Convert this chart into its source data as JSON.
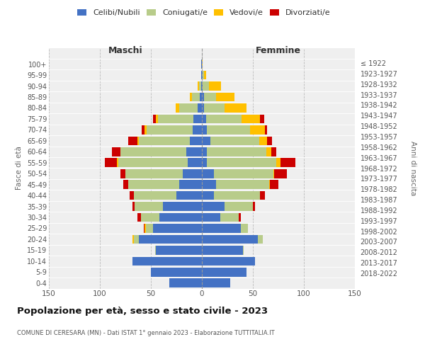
{
  "age_groups": [
    "0-4",
    "5-9",
    "10-14",
    "15-19",
    "20-24",
    "25-29",
    "30-34",
    "35-39",
    "40-44",
    "45-49",
    "50-54",
    "55-59",
    "60-64",
    "65-69",
    "70-74",
    "75-79",
    "80-84",
    "85-89",
    "90-94",
    "95-99",
    "100+"
  ],
  "birth_years": [
    "2018-2022",
    "2013-2017",
    "2008-2012",
    "2003-2007",
    "1998-2002",
    "1993-1997",
    "1988-1992",
    "1983-1987",
    "1978-1982",
    "1973-1977",
    "1968-1972",
    "1963-1967",
    "1958-1962",
    "1953-1957",
    "1948-1952",
    "1943-1947",
    "1938-1942",
    "1933-1937",
    "1928-1932",
    "1923-1927",
    "≤ 1922"
  ],
  "maschi": {
    "celibi": [
      32,
      50,
      68,
      45,
      62,
      48,
      42,
      38,
      25,
      22,
      19,
      14,
      15,
      12,
      9,
      8,
      4,
      2,
      1,
      1,
      1
    ],
    "coniugati": [
      0,
      0,
      0,
      1,
      5,
      7,
      18,
      28,
      42,
      50,
      56,
      68,
      65,
      50,
      45,
      35,
      18,
      8,
      2,
      0,
      0
    ],
    "vedovi": [
      0,
      0,
      0,
      0,
      1,
      1,
      0,
      0,
      0,
      0,
      0,
      1,
      0,
      1,
      2,
      2,
      4,
      2,
      1,
      0,
      0
    ],
    "divorziati": [
      0,
      0,
      0,
      0,
      0,
      1,
      3,
      2,
      4,
      5,
      5,
      12,
      8,
      9,
      3,
      3,
      0,
      0,
      0,
      0,
      0
    ]
  },
  "femmine": {
    "nubili": [
      28,
      44,
      52,
      40,
      55,
      38,
      18,
      22,
      12,
      14,
      12,
      5,
      5,
      8,
      5,
      4,
      2,
      2,
      1,
      1,
      0
    ],
    "coniugate": [
      0,
      0,
      0,
      1,
      5,
      7,
      18,
      28,
      45,
      52,
      58,
      68,
      58,
      48,
      42,
      35,
      20,
      12,
      6,
      1,
      0
    ],
    "vedove": [
      0,
      0,
      0,
      0,
      0,
      0,
      0,
      0,
      0,
      1,
      1,
      4,
      5,
      8,
      15,
      18,
      22,
      18,
      12,
      2,
      1
    ],
    "divorziate": [
      0,
      0,
      0,
      0,
      0,
      0,
      2,
      2,
      5,
      8,
      12,
      15,
      5,
      5,
      2,
      4,
      0,
      0,
      0,
      0,
      0
    ]
  },
  "colors": {
    "celibi_nubili": "#4472c4",
    "coniugati": "#b8cc8a",
    "vedovi": "#ffc000",
    "divorziati": "#cc0000"
  },
  "xlim": 150,
  "title": "Popolazione per età, sesso e stato civile - 2023",
  "subtitle": "COMUNE DI CERESARA (MN) - Dati ISTAT 1° gennaio 2023 - Elaborazione TUTTITALIA.IT",
  "ylabel_left": "Fasce di età",
  "ylabel_right": "Anni di nascita",
  "xlabel_maschi": "Maschi",
  "xlabel_femmine": "Femmine",
  "bg_color": "#efefef",
  "grid_color": "#cccccc",
  "xticks": [
    -150,
    -100,
    -50,
    0,
    50,
    100,
    150
  ]
}
